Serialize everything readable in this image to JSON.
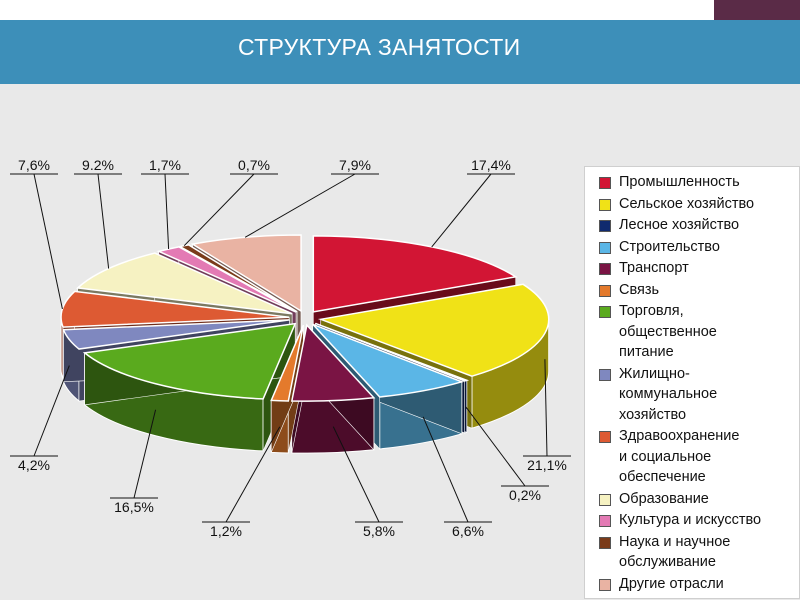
{
  "header": {
    "title": "СТРУКТУРА ЗАНЯТОСТИ"
  },
  "colors": {
    "header_bg": "#3d8fb9",
    "corner": "#5a2b47",
    "panel_bg": "#e9e9e9"
  },
  "chart_data": {
    "type": "pie",
    "title": "СТРУКТУРА ЗАНЯТОСТИ",
    "legend_position": "right",
    "slices": [
      {
        "label": "Промышленность",
        "value": 17.4,
        "value_label": "17,4%",
        "color": "#d21534"
      },
      {
        "label": "Сельское хозяйство",
        "value": 21.1,
        "value_label": "21,1%",
        "color": "#f0e217"
      },
      {
        "label": "Лесное хозяйство",
        "value": 0.2,
        "value_label": "0,2%",
        "color": "#102a6e"
      },
      {
        "label": "Строительство",
        "value": 6.6,
        "value_label": "6,6%",
        "color": "#5bb6e6"
      },
      {
        "label": "Транспорт",
        "value": 5.8,
        "value_label": "5,8%",
        "color": "#7a1444"
      },
      {
        "label": "Связь",
        "value": 1.2,
        "value_label": "1,2%",
        "color": "#e47a2c"
      },
      {
        "label": "Торговля,\nобщественное\nпитание",
        "value": 16.5,
        "value_label": "16,5%",
        "color": "#5aaa1e"
      },
      {
        "label": "Жилищно-\nкоммунальное\nхозяйство",
        "value": 4.2,
        "value_label": "4,2%",
        "color": "#7f88bf"
      },
      {
        "label": "Здравоохранение\nи социальное\nобеспечение",
        "value": 7.6,
        "value_label": "7,6%",
        "color": "#dd5a33"
      },
      {
        "label": "Образование",
        "value": 9.2,
        "value_label": "9.2%",
        "color": "#f6f2c2"
      },
      {
        "label": "Культура и искусство",
        "value": 1.7,
        "value_label": "1,7%",
        "color": "#e37ab4"
      },
      {
        "label": "Наука и научное\nобслуживание",
        "value": 0.7,
        "value_label": "0,7%",
        "color": "#7a3b1a"
      },
      {
        "label": "Другие отрасли",
        "value": 7.9,
        "value_label": "7,9%",
        "color": "#e9b3a3"
      }
    ]
  }
}
